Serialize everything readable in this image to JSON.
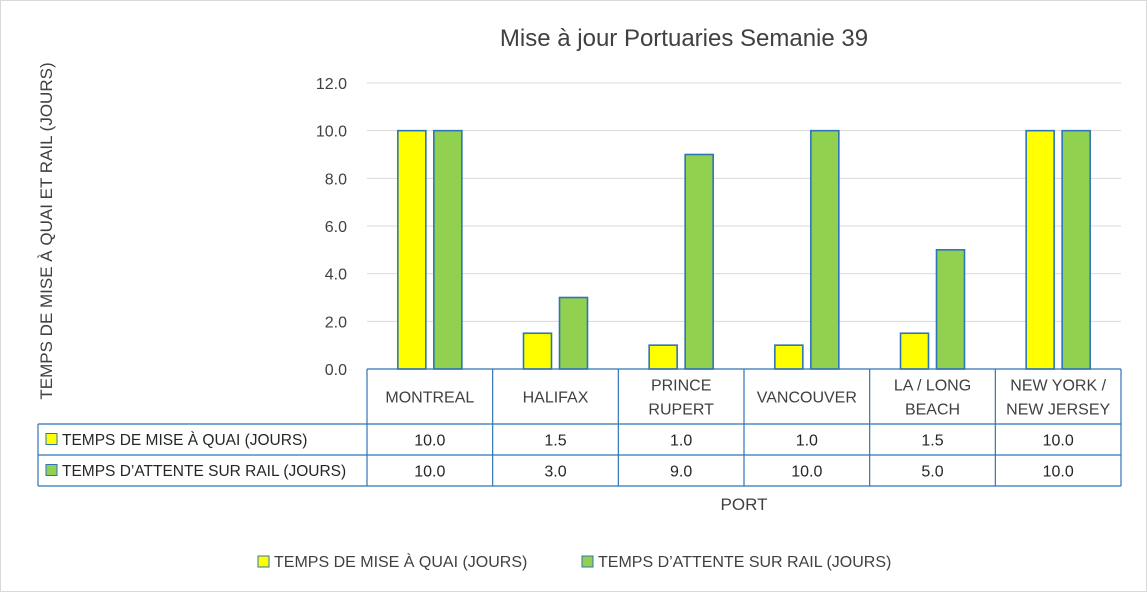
{
  "chart_data": {
    "type": "bar",
    "title": "Mise à jour Portuaries Semanie 39",
    "xlabel": "PORT",
    "ylabel": "TEMPS DE MISE À QUAI ET RAIL (JOURS)",
    "ylim": [
      0,
      12
    ],
    "y_ticks": [
      "0.0",
      "2.0",
      "4.0",
      "6.0",
      "8.0",
      "10.0",
      "12.0"
    ],
    "grid": true,
    "legend_position": "bottom",
    "categories": [
      [
        "MONTREAL"
      ],
      [
        "HALIFAX"
      ],
      [
        "PRINCE",
        "RUPERT"
      ],
      [
        "VANCOUVER"
      ],
      [
        "LA / LONG",
        "BEACH"
      ],
      [
        "NEW YORK /",
        "NEW JERSEY"
      ]
    ],
    "series": [
      {
        "name": "TEMPS DE MISE À QUAI (JOURS)",
        "color": "#ffff00",
        "values": [
          10.0,
          1.5,
          1.0,
          1.0,
          1.5,
          10.0
        ],
        "labels": [
          "10.0",
          "1.5",
          "1.0",
          "1.0",
          "1.5",
          "10.0"
        ]
      },
      {
        "name": "TEMPS  D’ATTENTE SUR RAIL (JOURS)",
        "color": "#92d050",
        "values": [
          10.0,
          3.0,
          9.0,
          10.0,
          5.0,
          10.0
        ],
        "labels": [
          "10.0",
          "3.0",
          "9.0",
          "10.0",
          "5.0",
          "10.0"
        ]
      }
    ]
  }
}
